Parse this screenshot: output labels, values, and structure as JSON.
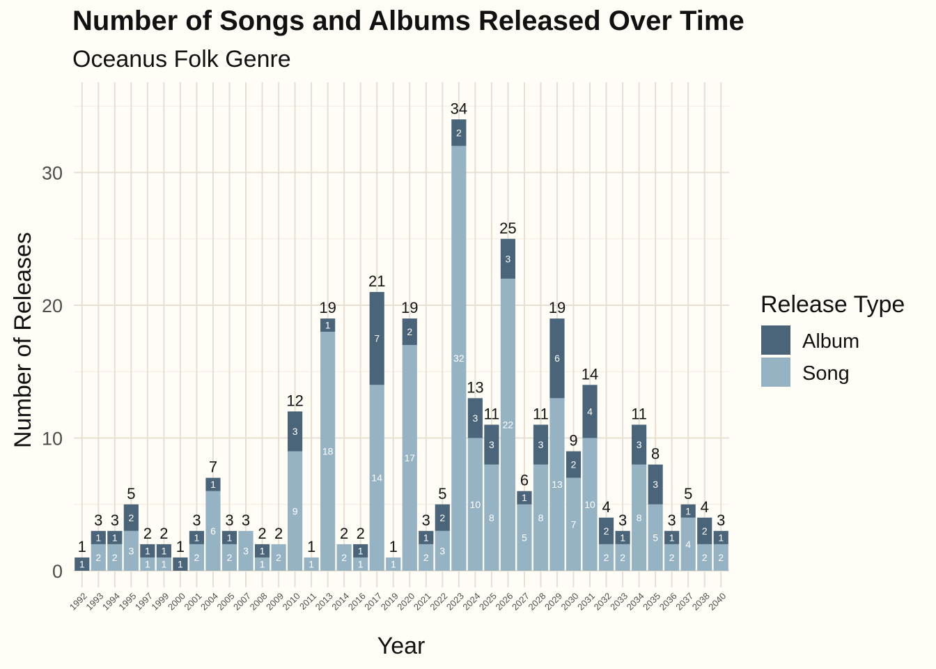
{
  "chart_data": {
    "type": "bar",
    "stacked": true,
    "title": "Number of Songs and Albums Released Over Time",
    "subtitle": "Oceanus Folk Genre",
    "xlabel": "Year",
    "ylabel": "Number of Releases",
    "ylim": [
      0,
      35
    ],
    "yticks": [
      0,
      10,
      20,
      30
    ],
    "grid": true,
    "legend": {
      "title": "Release Type",
      "position": "right",
      "entries": [
        {
          "name": "Album",
          "color": "#4A6479"
        },
        {
          "name": "Song",
          "color": "#96B3C4"
        }
      ]
    },
    "categories": [
      "1992",
      "1993",
      "1994",
      "1995",
      "1997",
      "1999",
      "2000",
      "2001",
      "2004",
      "2005",
      "2007",
      "2008",
      "2009",
      "2010",
      "2011",
      "2013",
      "2014",
      "2016",
      "2017",
      "2019",
      "2020",
      "2021",
      "2022",
      "2023",
      "2024",
      "2025",
      "2026",
      "2027",
      "2028",
      "2029",
      "2030",
      "2031",
      "2032",
      "2033",
      "2034",
      "2035",
      "2036",
      "2037",
      "2038",
      "2040"
    ],
    "series": [
      {
        "name": "Song",
        "color": "#96B3C4",
        "values": [
          0,
          2,
          2,
          3,
          1,
          1,
          0,
          2,
          6,
          2,
          3,
          1,
          2,
          9,
          1,
          18,
          2,
          1,
          14,
          1,
          17,
          2,
          3,
          32,
          10,
          8,
          22,
          5,
          8,
          13,
          7,
          10,
          2,
          2,
          8,
          5,
          2,
          4,
          2,
          2
        ]
      },
      {
        "name": "Album",
        "color": "#4A6479",
        "values": [
          1,
          1,
          1,
          2,
          1,
          1,
          1,
          1,
          1,
          1,
          0,
          1,
          0,
          3,
          0,
          1,
          0,
          1,
          7,
          0,
          2,
          1,
          2,
          2,
          3,
          3,
          3,
          1,
          3,
          6,
          2,
          4,
          2,
          1,
          3,
          3,
          1,
          1,
          2,
          1
        ]
      }
    ],
    "totals": [
      1,
      3,
      3,
      5,
      2,
      2,
      1,
      3,
      7,
      3,
      3,
      2,
      2,
      12,
      1,
      19,
      2,
      2,
      21,
      1,
      19,
      3,
      5,
      34,
      13,
      11,
      25,
      6,
      11,
      19,
      9,
      14,
      4,
      3,
      11,
      8,
      3,
      5,
      4,
      3
    ]
  }
}
